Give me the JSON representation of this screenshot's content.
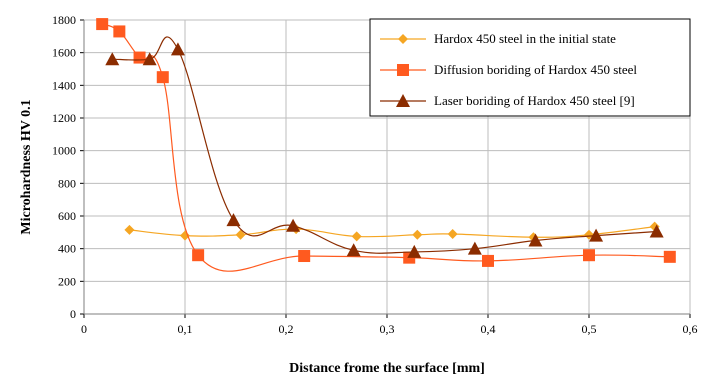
{
  "chart_data": {
    "type": "scatter",
    "title": "",
    "xlabel": "Distance frome the surface [mm]",
    "ylabel": "Microhardness   HV 0.1",
    "xlim": [
      0,
      0.6
    ],
    "ylim": [
      0,
      1800
    ],
    "xticks": [
      0,
      0.1,
      0.2,
      0.3,
      0.4,
      0.5,
      0.6
    ],
    "xtick_labels": [
      "0",
      "0,1",
      "0,2",
      "0,3",
      "0,4",
      "0,5",
      "0,6"
    ],
    "yticks": [
      0,
      200,
      400,
      600,
      800,
      1000,
      1200,
      1400,
      1600,
      1800
    ],
    "grid": true,
    "legend_position": "top-right",
    "series": [
      {
        "name": "Hardox 450 steel in the initial state",
        "color": "#f5a623",
        "marker": "diamond",
        "x": [
          0.045,
          0.1,
          0.155,
          0.21,
          0.27,
          0.33,
          0.365,
          0.445,
          0.5,
          0.565
        ],
        "y": [
          515,
          480,
          485,
          520,
          475,
          485,
          490,
          470,
          485,
          535
        ]
      },
      {
        "name": "Diffusion boriding of Hardox 450 steel",
        "color": "#ff5a1f",
        "marker": "square",
        "x": [
          0.018,
          0.035,
          0.055,
          0.078,
          0.113,
          0.218,
          0.322,
          0.4,
          0.5,
          0.58
        ],
        "y": [
          1775,
          1730,
          1570,
          1450,
          360,
          355,
          345,
          325,
          360,
          350
        ]
      },
      {
        "name": "Laser boriding of Hardox 450 steel [9]",
        "color": "#8b2c00",
        "marker": "triangle",
        "x": [
          0.028,
          0.065,
          0.093,
          0.148,
          0.207,
          0.267,
          0.327,
          0.387,
          0.447,
          0.507,
          0.567
        ],
        "y": [
          1560,
          1560,
          1620,
          575,
          540,
          390,
          380,
          400,
          450,
          480,
          505
        ]
      }
    ]
  }
}
